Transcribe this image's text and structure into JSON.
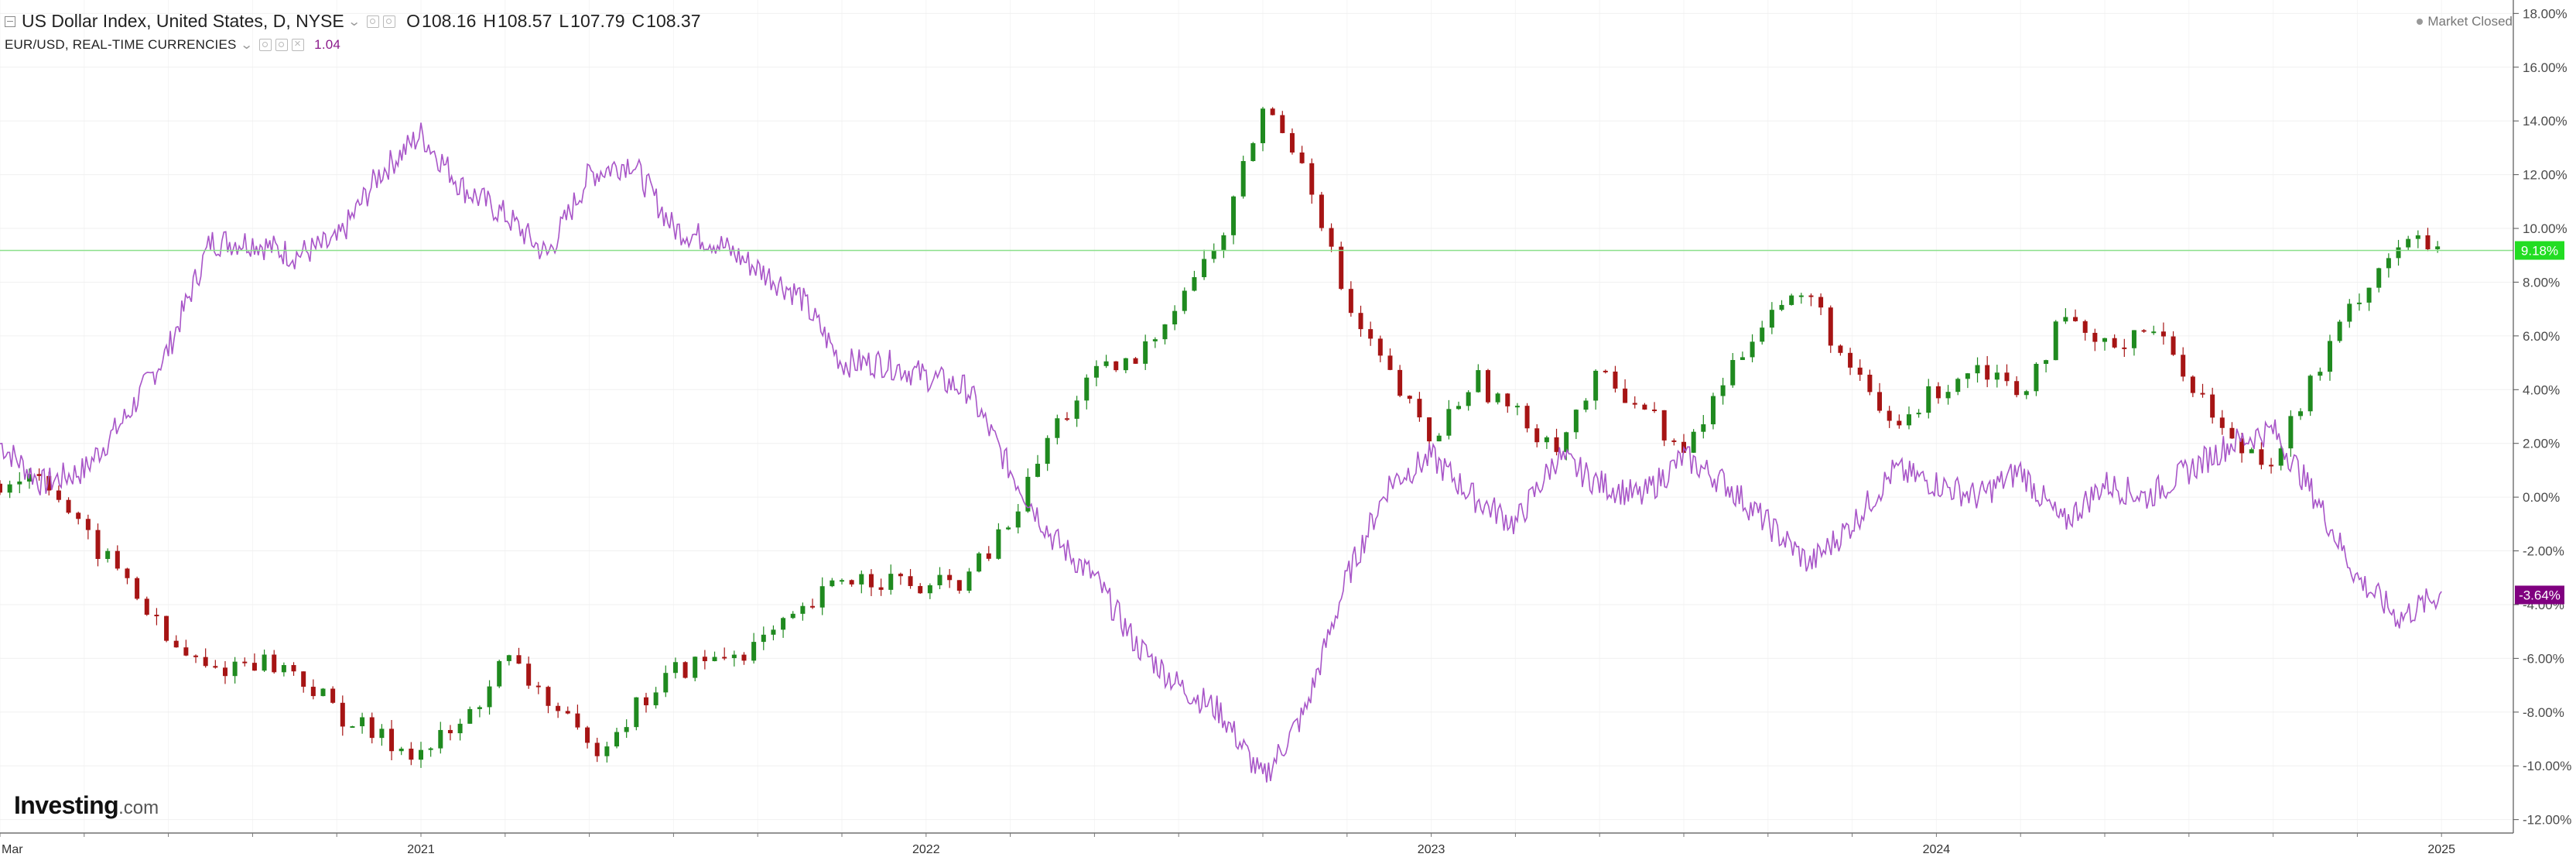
{
  "header": {
    "title": "US Dollar Index, United States, D, NYSE",
    "ohlc": [
      {
        "key": "O",
        "value": "108.16"
      },
      {
        "key": "H",
        "value": "108.57"
      },
      {
        "key": "L",
        "value": "107.79"
      },
      {
        "key": "C",
        "value": "108.37"
      }
    ],
    "compare_name": "EUR/USD, REAL-TIME CURRENCIES",
    "compare_value": "1.04",
    "market_status": "Market Closed"
  },
  "logo": {
    "main": "Investing",
    "domain": ".com"
  },
  "colors": {
    "candle_up": "#1f8a1f",
    "candle_down": "#a61414",
    "compare_line": "#a855c8",
    "price_line": "#8be08b",
    "price_tag": "#22dd22",
    "compare_tag": "#800080"
  },
  "chart_data": {
    "type": "line",
    "xlabel": "",
    "ylabel": "",
    "x_ticks": [
      "Mar",
      "2021",
      "2022",
      "2023",
      "2024",
      "2025"
    ],
    "y_ticks": [
      "18.00%",
      "16.00%",
      "14.00%",
      "12.00%",
      "10.00%",
      "8.00%",
      "6.00%",
      "4.00%",
      "2.00%",
      "0.00%",
      "-2.00%",
      "-4.00%",
      "-6.00%",
      "-8.00%",
      "-10.00%",
      "-12.00%"
    ],
    "ylim": [
      -12.5,
      18.5
    ],
    "grid": true,
    "last_price_tag": "9.18%",
    "last_compare_tag": "-3.64%",
    "series": [
      {
        "name": "US Dollar Index, United States, D, NYSE",
        "style": "candlestick",
        "x": [
          "2020-03",
          "2020-04",
          "2020-05",
          "2020-06",
          "2020-07",
          "2020-08",
          "2020-09",
          "2020-10",
          "2020-11",
          "2020-12",
          "2021-01",
          "2021-02",
          "2021-03",
          "2021-04",
          "2021-05",
          "2021-06",
          "2021-07",
          "2021-08",
          "2021-09",
          "2021-10",
          "2021-11",
          "2021-12",
          "2022-01",
          "2022-02",
          "2022-03",
          "2022-04",
          "2022-05",
          "2022-06",
          "2022-07",
          "2022-08",
          "2022-09",
          "2022-10",
          "2022-11",
          "2022-12",
          "2023-01",
          "2023-02",
          "2023-03",
          "2023-04",
          "2023-05",
          "2023-06",
          "2023-07",
          "2023-08",
          "2023-09",
          "2023-10",
          "2023-11",
          "2023-12",
          "2024-01",
          "2024-02",
          "2024-03",
          "2024-04",
          "2024-05",
          "2024-06",
          "2024-07",
          "2024-08",
          "2024-09",
          "2024-10",
          "2024-11",
          "2024-12",
          "2025-01"
        ],
        "values": [
          0.5,
          1.0,
          -1.5,
          -3.0,
          -5.5,
          -6.5,
          -6.0,
          -6.5,
          -8.0,
          -9.0,
          -9.5,
          -8.5,
          -6.0,
          -7.5,
          -9.5,
          -8.0,
          -6.5,
          -6.0,
          -5.5,
          -4.5,
          -3.0,
          -3.0,
          -3.5,
          -3.0,
          -1.0,
          2.5,
          4.5,
          5.0,
          7.5,
          9.5,
          14.5,
          12.5,
          7.0,
          4.5,
          2.0,
          4.5,
          3.0,
          2.0,
          4.5,
          3.5,
          1.5,
          4.5,
          7.0,
          7.5,
          4.5,
          2.5,
          4.0,
          5.0,
          4.0,
          6.5,
          5.5,
          6.5,
          4.5,
          2.0,
          1.5,
          4.5,
          7.5,
          9.5,
          9.2
        ]
      },
      {
        "name": "EUR/USD, REAL-TIME CURRENCIES",
        "style": "line",
        "x": [
          "2020-03",
          "2020-04",
          "2020-05",
          "2020-06",
          "2020-07",
          "2020-08",
          "2020-09",
          "2020-10",
          "2020-11",
          "2020-12",
          "2021-01",
          "2021-02",
          "2021-03",
          "2021-04",
          "2021-05",
          "2021-06",
          "2021-07",
          "2021-08",
          "2021-09",
          "2021-10",
          "2021-11",
          "2021-12",
          "2022-01",
          "2022-02",
          "2022-03",
          "2022-04",
          "2022-05",
          "2022-06",
          "2022-07",
          "2022-08",
          "2022-09",
          "2022-10",
          "2022-11",
          "2022-12",
          "2023-01",
          "2023-02",
          "2023-03",
          "2023-04",
          "2023-05",
          "2023-06",
          "2023-07",
          "2023-08",
          "2023-09",
          "2023-10",
          "2023-11",
          "2023-12",
          "2024-01",
          "2024-02",
          "2024-03",
          "2024-04",
          "2024-05",
          "2024-06",
          "2024-07",
          "2024-08",
          "2024-09",
          "2024-10",
          "2024-11",
          "2024-12",
          "2025-01"
        ],
        "values": [
          2.0,
          0.5,
          1.0,
          3.0,
          5.5,
          9.5,
          9.5,
          9.0,
          9.5,
          12.0,
          13.5,
          11.5,
          10.5,
          9.0,
          12.0,
          12.5,
          10.0,
          9.5,
          8.5,
          7.5,
          5.0,
          5.0,
          4.5,
          4.0,
          1.0,
          -1.5,
          -3.0,
          -5.5,
          -7.0,
          -8.0,
          -10.5,
          -8.0,
          -3.0,
          0.5,
          1.5,
          0.0,
          -1.0,
          1.5,
          0.5,
          0.0,
          1.5,
          0.5,
          -1.0,
          -2.5,
          -1.0,
          1.0,
          0.5,
          0.0,
          1.0,
          -1.0,
          0.5,
          0.0,
          1.0,
          2.0,
          2.5,
          0.0,
          -3.0,
          -4.5,
          -3.6
        ]
      }
    ]
  }
}
